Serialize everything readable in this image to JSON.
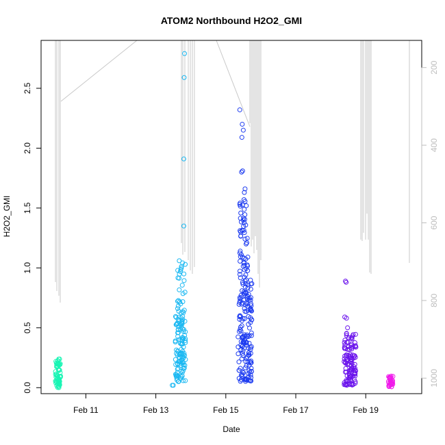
{
  "chart_data": {
    "type": "scatter",
    "title": "ATOM2 Northbound H2O2_GMI",
    "xlabel": "Date",
    "ylabel": "H2O2_GMI",
    "x_ticks": [
      "Feb 11",
      "Feb 13",
      "Feb 15",
      "Feb 17",
      "Feb 19"
    ],
    "x_range_days": [
      9.72,
      20.6
    ],
    "y_ticks": [
      "0.0",
      "0.5",
      "1.0",
      "1.5",
      "2.0",
      "2.5"
    ],
    "ylim": [
      -0.05,
      2.9
    ],
    "y2_ticks": [
      "200",
      "400",
      "600",
      "800",
      "1000"
    ],
    "y2_range": [
      1040,
      130
    ],
    "y2_reversed": true,
    "grid": false,
    "colors": {
      "feb10": "#19f5b4",
      "feb13": "#1ab8f2",
      "feb15": "#1e3cf0",
      "feb18": "#6a12ec",
      "feb19": "#f019ea",
      "pressure_line": "#c8c8c8"
    },
    "series": [
      {
        "date": "Feb 10",
        "x_range": [
          10.12,
          10.28
        ],
        "y_min": 0.0,
        "y_max": 0.24,
        "color": "#19f5b4"
      },
      {
        "date": "Feb 13",
        "x_range": [
          13.45,
          13.85
        ],
        "y_min": 0.02,
        "y_max": 2.79,
        "color": "#1ab8f2"
      },
      {
        "date": "Feb 15",
        "x_range": [
          15.35,
          15.75
        ],
        "y_min": 0.04,
        "y_max": 2.32,
        "color": "#1e3cf0"
      },
      {
        "date": "Feb 18",
        "x_range": [
          18.35,
          18.75
        ],
        "y_min": 0.02,
        "y_max": 0.9,
        "color": "#6a12ec"
      },
      {
        "date": "Feb 19",
        "x_range": [
          19.65,
          19.78
        ],
        "y_min": 0.0,
        "y_max": 0.1,
        "color": "#f019ea"
      }
    ]
  }
}
